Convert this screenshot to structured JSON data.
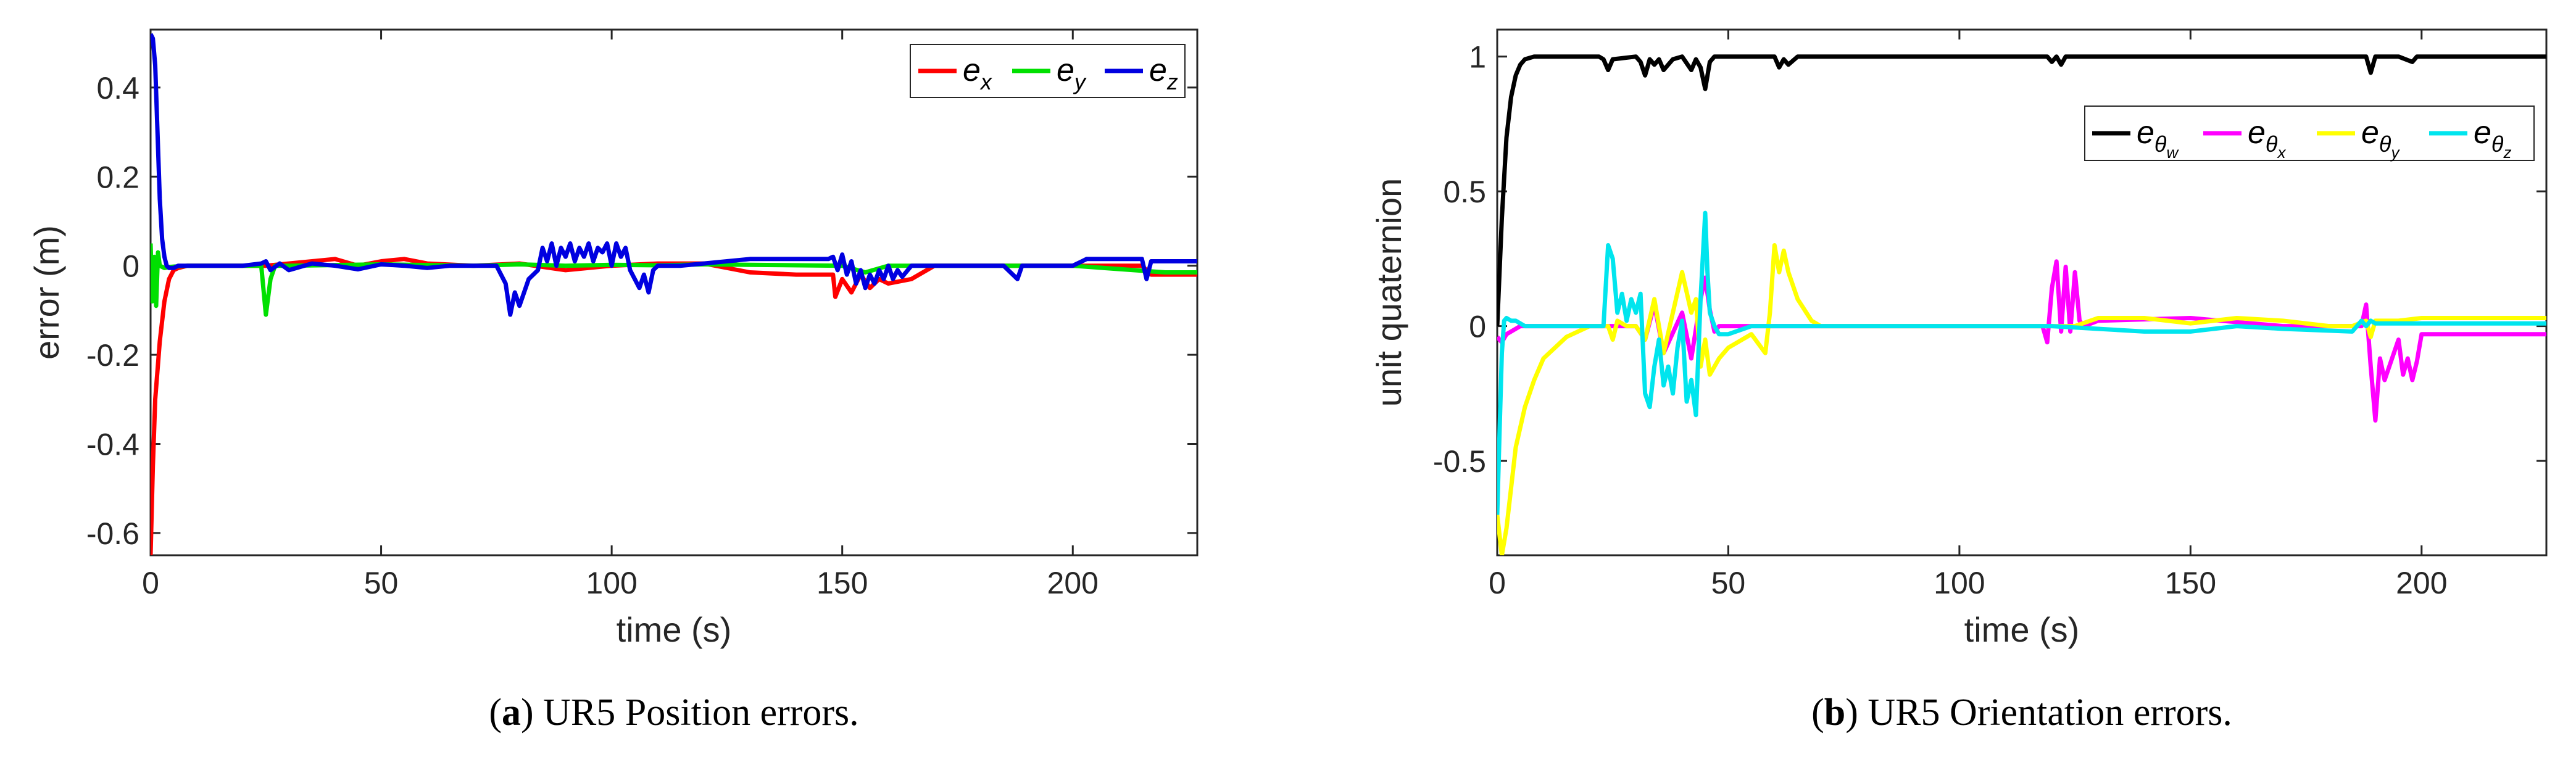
{
  "chart_data": [
    {
      "type": "line",
      "panel": "(a)",
      "caption_label": "a",
      "caption_text": " UR5 Position errors.",
      "xlabel": "time (s)",
      "ylabel": "error (m)",
      "xlim": [
        0,
        227
      ],
      "ylim": [
        -0.65,
        0.53
      ],
      "xticks": [
        0,
        50,
        100,
        150,
        200
      ],
      "yticks": [
        0.4,
        0.2,
        0,
        -0.2,
        -0.4,
        -0.6
      ],
      "xtick_labels": [
        "0",
        "50",
        "100",
        "150",
        "200"
      ],
      "ytick_labels": [
        "0.4",
        "0.2",
        "0",
        "-0.2",
        "-0.4",
        "-0.6"
      ],
      "grid": false,
      "legend_position": "top-right",
      "series": [
        {
          "name": "e_x",
          "legend_sub": "x",
          "color": "#ff0000",
          "x": [
            0,
            0.5,
            1,
            2,
            3,
            4,
            5,
            6,
            8,
            10,
            20,
            25,
            30,
            40,
            45,
            50,
            55,
            60,
            70,
            80,
            90,
            100,
            110,
            120,
            130,
            140,
            148,
            148.5,
            150,
            152,
            154,
            156,
            158,
            160,
            165,
            170,
            180,
            190,
            200,
            210,
            215,
            217,
            220,
            227
          ],
          "y": [
            -0.65,
            -0.45,
            -0.3,
            -0.17,
            -0.08,
            -0.03,
            -0.01,
            -0.005,
            0,
            0,
            0,
            0,
            0.005,
            0.015,
            0,
            0.01,
            0.015,
            0.005,
            0,
            0.005,
            -0.01,
            0,
            0.005,
            0.005,
            -0.015,
            -0.02,
            -0.02,
            -0.07,
            -0.03,
            -0.06,
            -0.02,
            -0.05,
            -0.03,
            -0.04,
            -0.03,
            0,
            0,
            0,
            0,
            0,
            0,
            -0.02,
            -0.02,
            -0.02
          ]
        },
        {
          "name": "e_y",
          "legend_sub": "y",
          "color": "#00e000",
          "x": [
            0,
            0.4,
            0.8,
            1.2,
            1.6,
            2,
            3,
            4,
            5,
            8,
            24,
            25,
            26,
            27,
            30,
            50,
            70,
            80,
            90,
            100,
            110,
            120,
            130,
            150,
            155,
            160,
            170,
            200,
            220,
            227
          ],
          "y": [
            0.05,
            -0.08,
            0.02,
            -0.09,
            0.03,
            0,
            -0.005,
            -0.003,
            -0.002,
            0,
            0,
            -0.11,
            -0.03,
            0,
            0,
            0.003,
            0,
            0.003,
            0,
            0.002,
            0.001,
            0.003,
            0.002,
            0,
            -0.015,
            0,
            0,
            0,
            -0.015,
            -0.015
          ]
        },
        {
          "name": "e_z",
          "legend_sub": "z",
          "color": "#0000e0",
          "x": [
            0,
            0.5,
            1,
            1.5,
            2,
            2.5,
            3,
            3.5,
            4,
            5,
            6,
            10,
            20,
            24,
            25,
            26,
            28,
            30,
            35,
            40,
            45,
            50,
            55,
            60,
            65,
            70,
            75,
            77,
            78,
            79,
            80,
            82,
            84,
            85,
            86,
            87,
            88,
            89,
            90,
            91,
            92,
            93,
            94,
            95,
            96,
            97,
            98,
            99,
            100,
            101,
            102,
            103,
            104,
            105,
            106,
            107,
            108,
            109,
            110,
            115,
            120,
            125,
            130,
            140,
            147,
            148,
            149,
            150,
            151,
            152,
            153,
            154,
            155,
            156,
            157,
            158,
            159,
            160,
            161,
            162,
            163,
            165,
            170,
            175,
            180,
            185,
            188,
            189,
            190,
            195,
            200,
            202,
            203,
            210,
            215,
            216,
            217,
            220,
            227
          ],
          "y": [
            0.52,
            0.51,
            0.45,
            0.3,
            0.15,
            0.06,
            0.02,
            0,
            -0.005,
            -0.005,
            0,
            0,
            0,
            0.005,
            0.01,
            -0.01,
            0.005,
            -0.01,
            0.005,
            0,
            -0.008,
            0.003,
            0,
            -0.005,
            0,
            0,
            0,
            -0.04,
            -0.11,
            -0.06,
            -0.09,
            -0.03,
            -0.01,
            0.04,
            0.01,
            0.05,
            0.0,
            0.04,
            0.02,
            0.05,
            0.01,
            0.04,
            0.02,
            0.05,
            0.01,
            0.04,
            0.03,
            0.05,
            0.0,
            0.05,
            0.02,
            0.04,
            -0.01,
            -0.03,
            -0.05,
            -0.02,
            -0.06,
            -0.01,
            0,
            0,
            0.005,
            0.01,
            0.015,
            0.015,
            0.015,
            0.02,
            -0.01,
            0.025,
            -0.02,
            0.01,
            -0.04,
            -0.01,
            -0.05,
            -0.02,
            -0.04,
            -0.01,
            -0.03,
            0,
            -0.03,
            -0.01,
            -0.025,
            0,
            0,
            0,
            0,
            0,
            -0.03,
            0,
            0,
            0,
            0,
            0.01,
            0.015,
            0.015,
            0.015,
            -0.03,
            0.01,
            0.01,
            0.01
          ]
        }
      ]
    },
    {
      "type": "line",
      "panel": "(b)",
      "caption_label": "b",
      "caption_text": " UR5 Orientation errors.",
      "xlabel": "time (s)",
      "ylabel": "unit quaternion",
      "xlim": [
        0,
        227
      ],
      "ylim": [
        -0.85,
        1.1
      ],
      "xticks": [
        0,
        50,
        100,
        150,
        200
      ],
      "yticks": [
        1,
        0.5,
        0,
        -0.5
      ],
      "xtick_labels": [
        "0",
        "50",
        "100",
        "150",
        "200"
      ],
      "ytick_labels": [
        "1",
        "0.5",
        "0",
        "-0.5"
      ],
      "grid": false,
      "legend_position": "top-right",
      "series": [
        {
          "name": "e_θw",
          "legend_sub": "w",
          "color": "#000000",
          "x": [
            0,
            1,
            2,
            3,
            4,
            5,
            6,
            8,
            10,
            20,
            22,
            23,
            24,
            25,
            30,
            31,
            32,
            33,
            34,
            35,
            36,
            38,
            40,
            42,
            43,
            44,
            45,
            46,
            47,
            50,
            55,
            60,
            61,
            62,
            63,
            65,
            70,
            80,
            100,
            119,
            120,
            121,
            122,
            123,
            125,
            130,
            150,
            185,
            188,
            189,
            190,
            195,
            198,
            199,
            200,
            210,
            227
          ],
          "y": [
            0,
            0.4,
            0.7,
            0.85,
            0.93,
            0.97,
            0.99,
            1,
            1,
            1,
            1,
            0.99,
            0.95,
            0.99,
            1,
            0.98,
            0.93,
            0.99,
            0.97,
            0.99,
            0.95,
            0.99,
            1,
            0.95,
            0.99,
            0.96,
            0.88,
            0.98,
            1,
            1,
            1,
            1,
            0.96,
            0.99,
            0.97,
            1,
            1,
            1,
            1,
            1,
            0.98,
            1,
            0.97,
            1,
            1,
            1,
            1,
            1,
            1,
            0.94,
            1,
            1,
            0.98,
            1,
            1,
            1,
            1
          ]
        },
        {
          "name": "e_θx",
          "legend_sub": "x",
          "color": "#ff00ff",
          "x": [
            0,
            1,
            2,
            3,
            5,
            10,
            20,
            30,
            32,
            34,
            36,
            40,
            42,
            44,
            45,
            46,
            47,
            48,
            50,
            55,
            60,
            80,
            100,
            118,
            119,
            120,
            121,
            122,
            123,
            124,
            125,
            126,
            127,
            130,
            150,
            170,
            185,
            187,
            188,
            189,
            190,
            191,
            192,
            195,
            196,
            197,
            198,
            199,
            200,
            205,
            227
          ],
          "y": [
            -0.04,
            -0.06,
            -0.03,
            -0.02,
            0,
            0,
            0,
            0,
            -0.05,
            0.08,
            -0.1,
            0.05,
            -0.12,
            0.1,
            0.18,
            0.06,
            -0.02,
            0,
            0,
            0,
            0,
            0,
            0,
            0,
            -0.06,
            0.14,
            0.24,
            -0.02,
            0.22,
            -0.02,
            0.2,
            0.02,
            0,
            0.02,
            0.03,
            0,
            0,
            0,
            0.08,
            -0.15,
            -0.35,
            -0.12,
            -0.2,
            -0.05,
            -0.18,
            -0.12,
            -0.2,
            -0.13,
            -0.03,
            -0.03,
            -0.03
          ]
        },
        {
          "name": "e_θy",
          "legend_sub": "y",
          "color": "#ffff00",
          "x": [
            0,
            1,
            2,
            3,
            4,
            6,
            8,
            10,
            15,
            20,
            24,
            25,
            26,
            28,
            30,
            32,
            34,
            36,
            38,
            40,
            42,
            43,
            44,
            45,
            46,
            48,
            50,
            55,
            58,
            59,
            60,
            61,
            62,
            63,
            65,
            68,
            70,
            80,
            100,
            120,
            125,
            130,
            140,
            150,
            160,
            170,
            180,
            185,
            188,
            189,
            190,
            195,
            200,
            210,
            227
          ],
          "y": [
            -0.7,
            -0.85,
            -0.75,
            -0.6,
            -0.45,
            -0.3,
            -0.2,
            -0.12,
            -0.04,
            0,
            0,
            -0.05,
            0.02,
            0,
            0,
            -0.05,
            0.1,
            -0.1,
            0.05,
            0.2,
            0.05,
            0.1,
            -0.15,
            -0.05,
            -0.18,
            -0.12,
            -0.08,
            -0.03,
            -0.1,
            0.05,
            0.3,
            0.2,
            0.28,
            0.2,
            0.1,
            0.02,
            0,
            0,
            0,
            0,
            0,
            0.03,
            0.03,
            0.01,
            0.03,
            0.02,
            0,
            0,
            0.02,
            -0.04,
            0.02,
            0.02,
            0.03,
            0.03,
            0.03
          ]
        },
        {
          "name": "e_θz",
          "legend_sub": "z",
          "color": "#00e5ee",
          "x": [
            0,
            0.5,
            1,
            1.5,
            2,
            3,
            4,
            6,
            10,
            20,
            23,
            24,
            25,
            26,
            27,
            28,
            29,
            30,
            31,
            32,
            33,
            34,
            35,
            36,
            37,
            38,
            39,
            40,
            41,
            42,
            43,
            44,
            45,
            45.5,
            46,
            47,
            48,
            50,
            55,
            60,
            70,
            100,
            120,
            130,
            140,
            150,
            160,
            170,
            185,
            187,
            188,
            189,
            190,
            200,
            210,
            227
          ],
          "y": [
            -0.7,
            -0.4,
            -0.1,
            0.02,
            0.03,
            0.02,
            0.02,
            0,
            0,
            0,
            0,
            0.3,
            0.25,
            0.05,
            0.12,
            0.02,
            0.1,
            0.05,
            0.12,
            -0.25,
            -0.3,
            -0.15,
            -0.05,
            -0.22,
            -0.15,
            -0.25,
            -0.08,
            0.02,
            -0.28,
            -0.2,
            -0.33,
            0.1,
            0.42,
            0.2,
            0.05,
            0.0,
            -0.03,
            -0.03,
            0,
            0,
            0,
            0,
            0,
            -0.01,
            -0.02,
            -0.02,
            0,
            -0.01,
            -0.02,
            0.02,
            0,
            0.02,
            0.01,
            0.01,
            0.01,
            0.01
          ]
        }
      ]
    }
  ]
}
